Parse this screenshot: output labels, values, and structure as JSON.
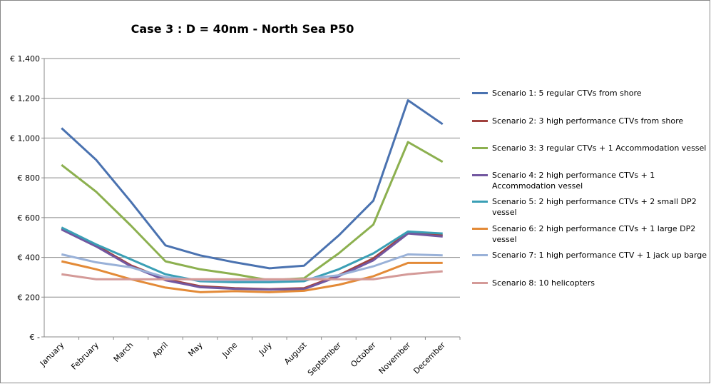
{
  "chart_data": {
    "type": "line",
    "title": "Case 3 : D = 40nm - North Sea P50",
    "categories": [
      "January",
      "February",
      "March",
      "April",
      "May",
      "June",
      "July",
      "August",
      "September",
      "October",
      "November",
      "December"
    ],
    "ylim": [
      0,
      1400
    ],
    "yticks": [
      {
        "value": 0,
        "label": "€ -"
      },
      {
        "value": 200,
        "label": "€ 200"
      },
      {
        "value": 400,
        "label": "€ 400"
      },
      {
        "value": 600,
        "label": "€ 600"
      },
      {
        "value": 800,
        "label": "€ 800"
      },
      {
        "value": 1000,
        "label": "€ 1,000"
      },
      {
        "value": 1200,
        "label": "€ 1,200"
      },
      {
        "value": 1400,
        "label": "€ 1,400"
      }
    ],
    "grid": true,
    "legend": "right",
    "series": [
      {
        "name": "Scenario 1: 5 regular CTVs from shore",
        "color": "#4a72b0",
        "values": [
          1050,
          890,
          680,
          460,
          410,
          375,
          345,
          358,
          510,
          685,
          1190,
          1070
        ]
      },
      {
        "name": "Scenario 2: 3 high performance CTVs from shore",
        "color": "#a0413d",
        "values": [
          545,
          460,
          360,
          290,
          255,
          245,
          240,
          245,
          310,
          395,
          525,
          510
        ]
      },
      {
        "name": "Scenario 3: 3 regular CTVs + 1 Accommodation vessel",
        "color": "#8cb04f",
        "values": [
          865,
          730,
          560,
          380,
          340,
          315,
          285,
          295,
          420,
          565,
          980,
          880
        ]
      },
      {
        "name": "Scenario 4: 2 high performance CTVs + 1 Accommodation vessel",
        "color": "#7257a0",
        "values": [
          540,
          455,
          355,
          285,
          250,
          242,
          238,
          240,
          305,
          385,
          520,
          505
        ]
      },
      {
        "name": "Scenario 5: 2 high performance CTVs + 2 small DP2 vessel",
        "color": "#3a9fb5",
        "values": [
          550,
          465,
          390,
          315,
          280,
          275,
          275,
          280,
          340,
          420,
          530,
          520
        ]
      },
      {
        "name": "Scenario 6: 2 high performance CTVs + 1 large DP2 vessel",
        "color": "#e38a37",
        "values": [
          380,
          340,
          290,
          248,
          225,
          230,
          225,
          232,
          262,
          305,
          372,
          372
        ]
      },
      {
        "name": "Scenario 7: 1 high performance CTV + 1 jack up barge",
        "color": "#99b1d8",
        "values": [
          415,
          375,
          350,
          300,
          285,
          285,
          285,
          290,
          310,
          355,
          415,
          410
        ]
      },
      {
        "name": "Scenario 8: 10 helicopters",
        "color": "#d49a98",
        "values": [
          315,
          290,
          290,
          290,
          290,
          290,
          290,
          290,
          290,
          290,
          315,
          330
        ]
      }
    ]
  }
}
